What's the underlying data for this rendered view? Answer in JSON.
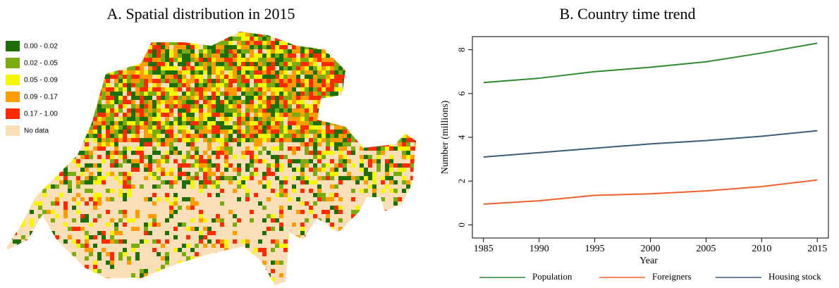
{
  "chart_data": [
    {
      "type": "map",
      "title": "A.  Spatial distribution in 2015",
      "categories": [
        "0.00 - 0.02",
        "0.02 - 0.05",
        "0.05 - 0.09",
        "0.09 - 0.17",
        "0.17 - 1.00",
        "No data"
      ],
      "colors": [
        "#1e6e0a",
        "#7aab10",
        "#f6f600",
        "#ff9d00",
        "#ff2a00",
        "#f8dfb8"
      ]
    },
    {
      "type": "line",
      "title": "B.  Country time trend",
      "xlabel": "Year",
      "ylabel": "Number (millions)",
      "x": [
        1985,
        1990,
        1995,
        2000,
        2005,
        2010,
        2015
      ],
      "series": [
        {
          "name": "Population",
          "color": "#2e8b2e",
          "values": [
            6.5,
            6.7,
            7.0,
            7.2,
            7.45,
            7.85,
            8.3
          ]
        },
        {
          "name": "Foreigners",
          "color": "#f0602a",
          "values": [
            0.95,
            1.1,
            1.35,
            1.42,
            1.55,
            1.75,
            2.05
          ]
        },
        {
          "name": "Housing stock",
          "color": "#3d5a7a",
          "values": [
            3.1,
            3.3,
            3.5,
            3.7,
            3.85,
            4.05,
            4.3
          ]
        }
      ],
      "xlim": [
        1984,
        2016
      ],
      "ylim": [
        -0.6,
        8.6
      ],
      "xticks": [
        1985,
        1990,
        1995,
        2000,
        2005,
        2010,
        2015
      ],
      "yticks": [
        0,
        2,
        4,
        6,
        8
      ]
    }
  ]
}
